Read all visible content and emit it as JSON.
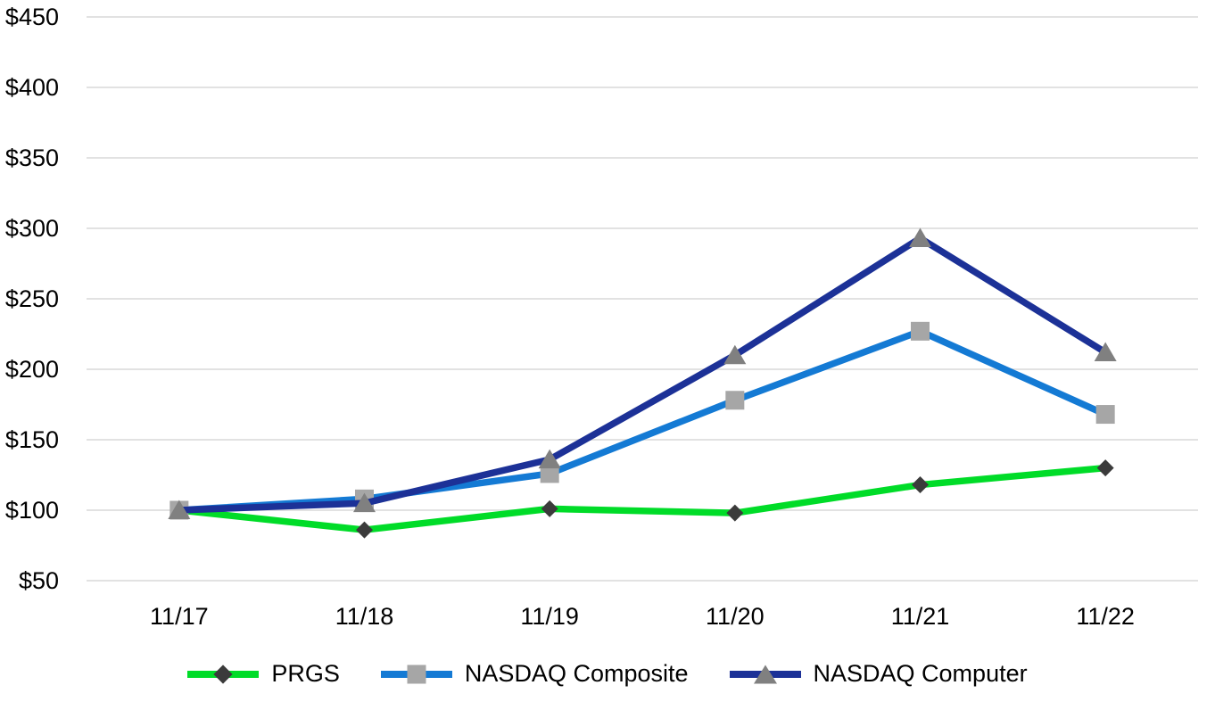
{
  "page": {
    "background": "#FFFFFF"
  },
  "chart_data": {
    "type": "line",
    "title": "",
    "xlabel": "",
    "ylabel": "",
    "categories": [
      "11/17",
      "11/18",
      "11/19",
      "11/20",
      "11/21",
      "11/22"
    ],
    "series": [
      {
        "name": "PRGS",
        "values": [
          100,
          86,
          101,
          98,
          118,
          130
        ],
        "color": "#00DC28",
        "marker": "diamond",
        "marker_color": "#3B3B3B"
      },
      {
        "name": "NASDAQ Composite",
        "values": [
          100,
          108,
          126,
          178,
          227,
          168
        ],
        "color": "#147AD4",
        "marker": "square",
        "marker_color": "#A6A6A6"
      },
      {
        "name": "NASDAQ Computer",
        "values": [
          100,
          105,
          136,
          210,
          293,
          212
        ],
        "color": "#1C3197",
        "marker": "triangle",
        "marker_color": "#808080"
      }
    ],
    "ylim": [
      50,
      450
    ],
    "ytick_step": 50,
    "ytick_prefix": "$",
    "ytick_labels": [
      "$50",
      "$100",
      "$150",
      "$200",
      "$250",
      "$300",
      "$350",
      "$400",
      "$450"
    ],
    "grid": true,
    "gridline_color": "#E2E2E2",
    "axis_text_color": "#000000",
    "legend_position": "bottom"
  }
}
